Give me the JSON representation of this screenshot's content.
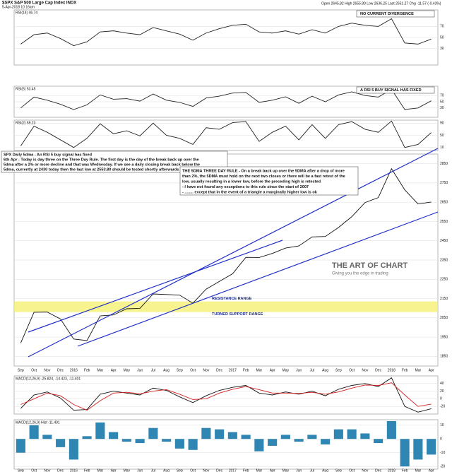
{
  "header": {
    "symbol": "$SPX S&P 500 Large Cap Index INDX",
    "date": "5-Apr-2018 10:16am",
    "quote": "Open 2645.82  High 2655.80  Low 2636.25  Last 2651.27  Chg -11.57 (-0.43%)"
  },
  "chart_data": [
    {
      "type": "line",
      "title": "RSI(14) 46.74",
      "annotation": "NO CURRENT DIVERGENCE",
      "ylim": [
        0,
        100
      ],
      "yticks": [
        30,
        50,
        70
      ],
      "series": [
        {
          "name": "RSI(14)",
          "color": "#222222",
          "values": [
            38,
            55,
            58,
            48,
            35,
            42,
            60,
            62,
            58,
            55,
            68,
            62,
            56,
            45,
            58,
            66,
            72,
            74,
            60,
            58,
            62,
            56,
            64,
            58,
            70,
            76,
            72,
            70,
            84,
            40,
            38,
            47
          ]
        }
      ]
    },
    {
      "type": "line",
      "title": "RSI(5) 53.45",
      "annotation": "A RSI 5 BUY SIGNAL HAS FIXED",
      "ylim": [
        0,
        100
      ],
      "yticks": [
        30,
        50,
        70
      ],
      "series": [
        {
          "name": "RSI(5)",
          "color": "#222222",
          "values": [
            30,
            65,
            55,
            42,
            25,
            40,
            72,
            58,
            60,
            52,
            75,
            55,
            48,
            35,
            62,
            68,
            78,
            80,
            48,
            55,
            66,
            45,
            68,
            50,
            72,
            82,
            70,
            65,
            90,
            25,
            30,
            53
          ]
        }
      ]
    },
    {
      "type": "line",
      "title": "RSI(2) 59.23",
      "ylim": [
        0,
        100
      ],
      "yticks": [
        10,
        50,
        90
      ],
      "series": [
        {
          "name": "RSI(2)",
          "color": "#222222",
          "values": [
            15,
            80,
            60,
            35,
            10,
            40,
            88,
            55,
            65,
            48,
            90,
            50,
            40,
            20,
            75,
            70,
            92,
            95,
            30,
            60,
            80,
            35,
            85,
            40,
            85,
            95,
            70,
            60,
            97,
            10,
            20,
            59
          ]
        }
      ]
    },
    {
      "type": "line",
      "title": "$SPX (Daily) 2651.27",
      "categories": [
        "Sep",
        "Oct",
        "Nov",
        "Dec",
        "2016",
        "Feb",
        "Mar",
        "Apr",
        "May",
        "Jun",
        "Jul",
        "Aug",
        "Sep",
        "Oct",
        "Nov",
        "Dec",
        "2017",
        "Feb",
        "Mar",
        "Apr",
        "May",
        "Jun",
        "Jul",
        "Aug",
        "Sep",
        "Oct",
        "Nov",
        "Dec",
        "2018",
        "Feb",
        "Mar",
        "Apr"
      ],
      "ylim": [
        1800,
        2900
      ],
      "yticks": [
        1850,
        1950,
        2050,
        2150,
        2250,
        2350,
        2450,
        2550,
        2650,
        2750,
        2850
      ],
      "grid": true,
      "series": [
        {
          "name": "$SPX",
          "color": "#111111",
          "values": [
            1920,
            2079,
            2080,
            2044,
            1940,
            1932,
            2060,
            2065,
            2097,
            2099,
            2174,
            2171,
            2168,
            2126,
            2199,
            2239,
            2279,
            2364,
            2363,
            2384,
            2412,
            2423,
            2470,
            2472,
            2519,
            2575,
            2648,
            2674,
            2824,
            2714,
            2641,
            2651
          ]
        }
      ],
      "band": {
        "range": [
          2080,
          2135
        ],
        "label": "RESISTANCE RANGE",
        "sublabel": "TURNED SUPPORT RANGE",
        "color": "#f3f060"
      },
      "notes": [
        "SPX Daily 5dma - An RSI 5 buy signal has fixed",
        "6th Apr - Today is day three on the Three Day Rule. The first day is the day of the break back up over the",
        "5dma after a 2% or more decline and that was Wednesday. If we see a daily closing break back below the",
        "5dma, currently at 2430 today then the last low at 2553.80 should be tested shortly afterwards"
      ],
      "rule": [
        "THE 5DMA THREE DAY RULE - On a break back up over the 5DMA after a drop of more",
        "than 2%, the 5DMA must hold on the next two closes or there will be a fast retest of the",
        "low, usually resulting in a lower low, before the preceding high is retested",
        "- I have not found any exceptions to this rule since the start of 2007",
        "- ........ except that in the event of a triangle a marginally higher low is ok"
      ],
      "watermark": "THE ART OF CHART",
      "tagline": "Giving you the edge in trading"
    },
    {
      "type": "line",
      "title": "MACD(12,26,9) -25.824, -14.423, -11.401",
      "ylim": [
        -40,
        60
      ],
      "yticks": [
        -20,
        0,
        20,
        40
      ],
      "series": [
        {
          "name": "MACD",
          "color": "#111111",
          "values": [
            -25,
            10,
            18,
            2,
            -30,
            -28,
            12,
            20,
            15,
            10,
            28,
            22,
            5,
            -10,
            8,
            22,
            30,
            35,
            15,
            10,
            18,
            12,
            20,
            8,
            25,
            35,
            40,
            32,
            55,
            -20,
            -35,
            -26
          ]
        },
        {
          "name": "Signal",
          "color": "#d42020",
          "values": [
            -15,
            0,
            15,
            8,
            -15,
            -30,
            -5,
            15,
            17,
            13,
            20,
            24,
            12,
            -2,
            0,
            15,
            25,
            32,
            24,
            15,
            15,
            14,
            17,
            12,
            18,
            28,
            36,
            35,
            42,
            10,
            -20,
            -14
          ]
        }
      ]
    },
    {
      "type": "bar",
      "title": "MACD(12,26,9) Hist -11.401",
      "ylim": [
        -22,
        14
      ],
      "yticks": [
        -20,
        -10,
        0,
        10
      ],
      "color": "#2f86b3",
      "values": [
        -10,
        10,
        3,
        -6,
        -15,
        2,
        12,
        5,
        -2,
        -3,
        8,
        -2,
        -7,
        -8,
        8,
        7,
        5,
        3,
        -9,
        -5,
        3,
        -2,
        3,
        -4,
        7,
        7,
        4,
        -3,
        13,
        -20,
        -15,
        -11.4
      ]
    }
  ]
}
